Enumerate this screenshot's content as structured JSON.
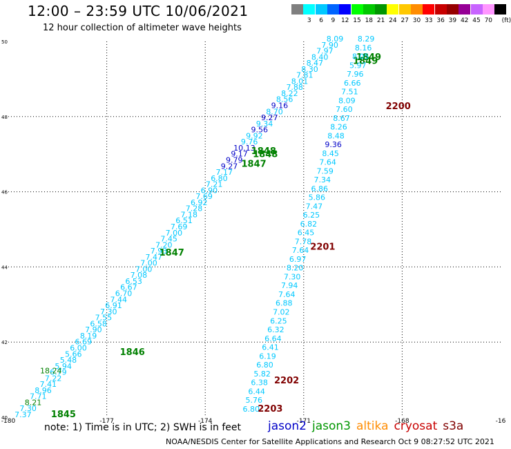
{
  "header": {
    "title": "12:00 – 23:59 UTC 10/06/2021",
    "subtitle": "12 hour collection of altimeter wave heights"
  },
  "legend": {
    "unit": "(ft)",
    "scale": [
      {
        "label": "",
        "color": "#7f7f7f"
      },
      {
        "label": "3",
        "color": "#00ffff"
      },
      {
        "label": "6",
        "color": "#00c8ff"
      },
      {
        "label": "9",
        "color": "#0064ff"
      },
      {
        "label": "12",
        "color": "#0000ff"
      },
      {
        "label": "15",
        "color": "#00ff00"
      },
      {
        "label": "18",
        "color": "#00c800"
      },
      {
        "label": "21",
        "color": "#009600"
      },
      {
        "label": "24",
        "color": "#ffff00"
      },
      {
        "label": "27",
        "color": "#ffc800"
      },
      {
        "label": "30",
        "color": "#ff8c00"
      },
      {
        "label": "33",
        "color": "#ff0000"
      },
      {
        "label": "36",
        "color": "#c80000"
      },
      {
        "label": "39",
        "color": "#960000"
      },
      {
        "label": "42",
        "color": "#960096"
      },
      {
        "label": "45",
        "color": "#c864ff"
      },
      {
        "label": "70",
        "color": "#ff96ff"
      },
      {
        "label": "",
        "color": "#000000"
      }
    ]
  },
  "map": {
    "lon_ticks": [
      "-180",
      "-177",
      "-174",
      "-171",
      "-168",
      "-16"
    ],
    "lat_ticks": [
      "50",
      "48",
      "46",
      "44",
      "42",
      "40"
    ],
    "lon_range": [
      -180,
      -165
    ],
    "lat_range": [
      40,
      50
    ],
    "colors": {
      "jason2": "#0000c8",
      "jason3": "#008000",
      "altika": "#ff8c00",
      "cryosat": "#c80000",
      "s3a": "#800000",
      "light": "#00c8ff",
      "dark": "#0000ff"
    },
    "track_a": {
      "start": [
        -179.55,
        40.0
      ],
      "end": [
        -170.05,
        50.0
      ],
      "values": [
        "7.37",
        "7.30",
        "8.21",
        "7.71",
        "8.96",
        "7.41",
        "7.22",
        "6.79",
        "5.94",
        "5.48",
        "5.66",
        "6.00",
        "6.69",
        "8.19",
        "7.90",
        "6.58",
        "7.55",
        "7.30",
        "6.91",
        "7.44",
        "6.70",
        "6.67",
        "6.53",
        "7.08",
        "7.00",
        "7.00",
        "7.47",
        "7.93",
        "7.20",
        "7.45",
        "7.00",
        "7.69",
        "6.51",
        "7.18",
        "7.28",
        "6.92",
        "7.69",
        "6.90",
        "7.21",
        "6.80",
        "7.17",
        "9.27",
        "9.79",
        "9.17",
        "10.13",
        "9.76",
        "9.92",
        "9.56",
        "9.34",
        "9.27",
        "8.70",
        "9.16",
        "8.56",
        "8.22",
        "7.88",
        "8.01",
        "7.81",
        "8.30",
        "8.47",
        "8.40",
        "7.97",
        "7.90",
        "8.09"
      ],
      "highlight": {
        "8.21": "jason3",
        "18.24": "jason3",
        "10.13": "jason2",
        "9.79": "jason2",
        "9.17": "jason2",
        "9.27": "jason2",
        "9.16": "jason2",
        "9.56": "jason2"
      },
      "extra": [
        {
          "value": "18.24",
          "lon": -178.7,
          "lat": 41.17,
          "type": "jason3"
        }
      ],
      "times": [
        {
          "label": "1845",
          "lon": -178.7,
          "lat": 40.0
        },
        {
          "label": "1846",
          "lon": -176.6,
          "lat": 41.65
        },
        {
          "label": "1847",
          "lon": -175.4,
          "lat": 44.3
        },
        {
          "label": "1847",
          "lon": -172.9,
          "lat": 46.66
        },
        {
          "label": "1848",
          "lon": -172.55,
          "lat": 46.92
        },
        {
          "label": "1848",
          "lon": -172.6,
          "lat": 47.0
        },
        {
          "label": "1849",
          "lon": -169.4,
          "lat": 49.5
        },
        {
          "label": "1849",
          "lon": -169.5,
          "lat": 49.4
        }
      ]
    },
    "track_b": {
      "start": [
        -172.6,
        40.15
      ],
      "end": [
        -169.1,
        50.0
      ],
      "values": [
        "6.80",
        "5.76",
        "6.44",
        "6.38",
        "5.82",
        "6.80",
        "6.19",
        "6.41",
        "6.64",
        "6.32",
        "6.25",
        "7.02",
        "6.88",
        "7.64",
        "7.94",
        "7.30",
        "8.20",
        "6.97",
        "7.64",
        "7.78",
        "6.45",
        "6.82",
        "6.25",
        "7.47",
        "5.86",
        "6.86",
        "7.34",
        "7.59",
        "7.64",
        "8.45",
        "9.36",
        "8.48",
        "8.26",
        "8.67",
        "7.60",
        "8.09",
        "7.51",
        "6.66",
        "7.96",
        "5.97",
        "8.05",
        "8.16",
        "8.29"
      ],
      "highlight": {
        "9.36": "jason2"
      },
      "times": [
        {
          "label": "2203",
          "lon": -172.4,
          "lat": 40.15
        },
        {
          "label": "2202",
          "lon": -171.9,
          "lat": 40.9
        },
        {
          "label": "2201",
          "lon": -170.8,
          "lat": 44.46
        },
        {
          "label": "2200",
          "lon": -168.5,
          "lat": 48.2
        }
      ]
    }
  },
  "footer": {
    "note": "note: 1) Time is in UTC; 2) SWH is in feet",
    "satellites": [
      {
        "name": "jason2",
        "color": "#0000c8"
      },
      {
        "name": "jason3",
        "color": "#009600"
      },
      {
        "name": "altika",
        "color": "#ff8c00"
      },
      {
        "name": "cryosat",
        "color": "#c80000"
      },
      {
        "name": "s3a",
        "color": "#800000"
      }
    ],
    "credit": "NOAA/NESDIS Center for Satellite Applications and Research    Oct  9 08:27:52 UTC 2021"
  }
}
